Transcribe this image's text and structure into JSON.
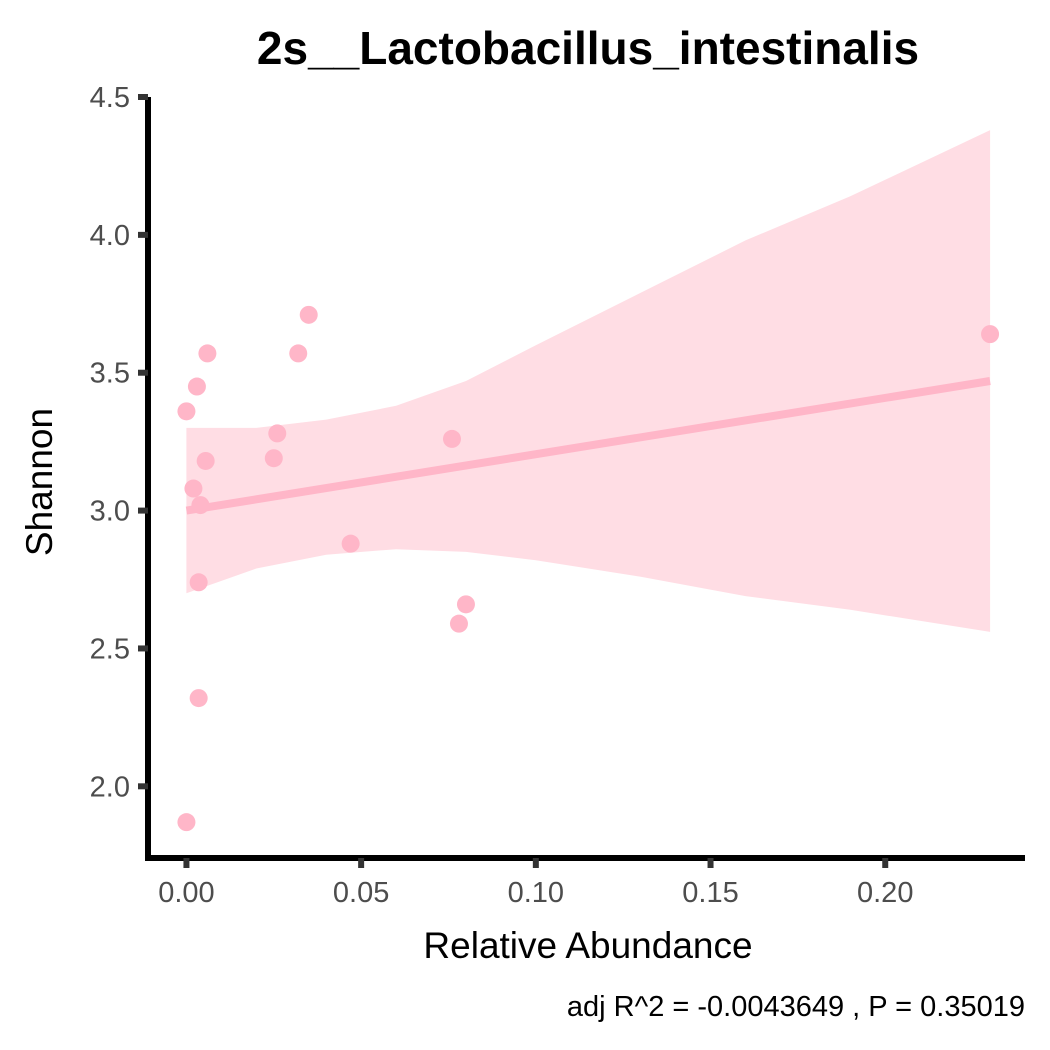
{
  "chart_data": {
    "type": "scatter",
    "title": "2s__Lactobacillus_intestinalis",
    "xlabel": "Relative Abundance",
    "ylabel": "Shannon",
    "caption": "adj R^2 =  -0.0043649 , P = 0.35019",
    "xlim": [
      -0.011,
      0.24
    ],
    "ylim": [
      1.74,
      4.5
    ],
    "x_ticks": [
      0.0,
      0.05,
      0.1,
      0.15,
      0.2
    ],
    "x_tick_labels": [
      "0.00",
      "0.05",
      "0.10",
      "0.15",
      "0.20"
    ],
    "y_ticks": [
      2.0,
      2.5,
      3.0,
      3.5,
      4.0,
      4.5
    ],
    "y_tick_labels": [
      "2.0",
      "2.5",
      "3.0",
      "3.5",
      "4.0",
      "4.5"
    ],
    "grid": false,
    "colors": {
      "points": "#ffb6c8",
      "line": "#ffb6c8",
      "band": "#ffdde4",
      "axis": "#000000"
    },
    "points": [
      {
        "x": 0.0,
        "y": 3.36
      },
      {
        "x": 0.0,
        "y": 1.87
      },
      {
        "x": 0.002,
        "y": 3.08
      },
      {
        "x": 0.003,
        "y": 3.45
      },
      {
        "x": 0.0035,
        "y": 2.74
      },
      {
        "x": 0.0035,
        "y": 2.32
      },
      {
        "x": 0.004,
        "y": 3.02
      },
      {
        "x": 0.0055,
        "y": 3.18
      },
      {
        "x": 0.006,
        "y": 3.57
      },
      {
        "x": 0.025,
        "y": 3.19
      },
      {
        "x": 0.026,
        "y": 3.28
      },
      {
        "x": 0.032,
        "y": 3.57
      },
      {
        "x": 0.035,
        "y": 3.71
      },
      {
        "x": 0.047,
        "y": 2.88
      },
      {
        "x": 0.076,
        "y": 3.26
      },
      {
        "x": 0.078,
        "y": 2.59
      },
      {
        "x": 0.08,
        "y": 2.66
      },
      {
        "x": 0.23,
        "y": 3.64
      }
    ],
    "fit_line": {
      "x": [
        0.0,
        0.23
      ],
      "y": [
        3.0,
        3.47
      ]
    },
    "confidence_band": {
      "x": [
        0.0,
        0.02,
        0.04,
        0.06,
        0.08,
        0.1,
        0.13,
        0.16,
        0.19,
        0.23
      ],
      "upper": [
        3.3,
        3.3,
        3.33,
        3.38,
        3.47,
        3.6,
        3.79,
        3.98,
        4.14,
        4.38
      ],
      "lower": [
        2.7,
        2.79,
        2.84,
        2.86,
        2.85,
        2.82,
        2.76,
        2.69,
        2.64,
        2.56
      ]
    }
  }
}
